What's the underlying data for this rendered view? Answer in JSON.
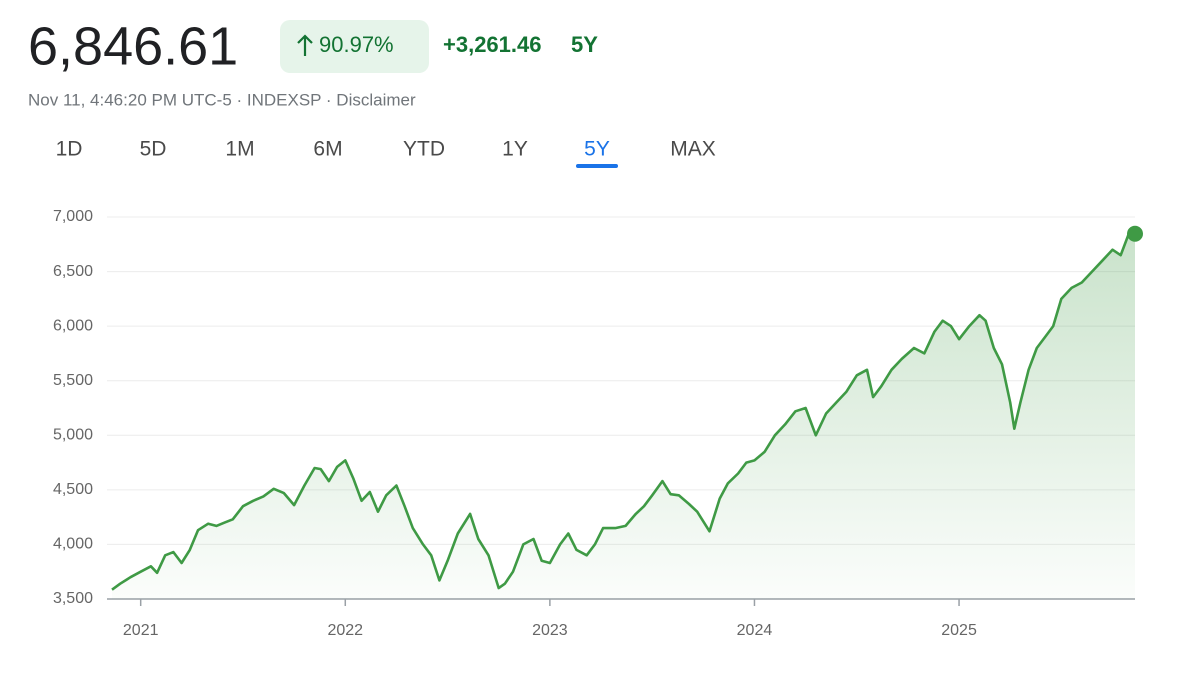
{
  "header": {
    "price": "6,846.61",
    "change_percent": "90.97%",
    "change_value": "+3,261.46",
    "period": "5Y",
    "meta": "Nov 11, 4:46:20 PM UTC-5 · INDEXSP · Disclaimer"
  },
  "tabs": {
    "items": [
      "1D",
      "5D",
      "1M",
      "6M",
      "YTD",
      "1Y",
      "5Y",
      "MAX"
    ],
    "active": 6
  },
  "chart_data": {
    "type": "line",
    "x": [
      2020.86,
      2020.9,
      2020.95,
      2021.0,
      2021.05,
      2021.08,
      2021.12,
      2021.16,
      2021.2,
      2021.24,
      2021.28,
      2021.33,
      2021.37,
      2021.41,
      2021.45,
      2021.5,
      2021.55,
      2021.6,
      2021.65,
      2021.7,
      2021.75,
      2021.8,
      2021.85,
      2021.88,
      2021.92,
      2021.96,
      2022.0,
      2022.04,
      2022.08,
      2022.12,
      2022.16,
      2022.2,
      2022.25,
      2022.29,
      2022.33,
      2022.38,
      2022.42,
      2022.46,
      2022.5,
      2022.55,
      2022.61,
      2022.65,
      2022.7,
      2022.75,
      2022.78,
      2022.82,
      2022.87,
      2022.92,
      2022.96,
      2023.0,
      2023.05,
      2023.09,
      2023.13,
      2023.18,
      2023.22,
      2023.26,
      2023.32,
      2023.37,
      2023.42,
      2023.46,
      2023.5,
      2023.55,
      2023.59,
      2023.63,
      2023.68,
      2023.72,
      2023.78,
      2023.83,
      2023.87,
      2023.92,
      2023.96,
      2024.0,
      2024.05,
      2024.1,
      2024.15,
      2024.2,
      2024.25,
      2024.3,
      2024.35,
      2024.4,
      2024.45,
      2024.5,
      2024.55,
      2024.58,
      2024.62,
      2024.67,
      2024.72,
      2024.78,
      2024.83,
      2024.88,
      2024.92,
      2024.96,
      2025.0,
      2025.05,
      2025.1,
      2025.13,
      2025.17,
      2025.21,
      2025.25,
      2025.27,
      2025.3,
      2025.34,
      2025.38,
      2025.42,
      2025.46,
      2025.5,
      2025.55,
      2025.6,
      2025.65,
      2025.7,
      2025.75,
      2025.79,
      2025.83,
      2025.86
    ],
    "series": [
      {
        "name": "INDEXSP",
        "color": "#3f9a45",
        "values": [
          3585,
          3640,
          3700,
          3750,
          3800,
          3740,
          3900,
          3930,
          3830,
          3950,
          4130,
          4190,
          4170,
          4200,
          4230,
          4350,
          4400,
          4440,
          4510,
          4470,
          4360,
          4540,
          4700,
          4690,
          4580,
          4710,
          4770,
          4600,
          4400,
          4480,
          4300,
          4450,
          4540,
          4350,
          4150,
          4000,
          3900,
          3670,
          3850,
          4100,
          4280,
          4050,
          3900,
          3600,
          3640,
          3750,
          4000,
          4050,
          3850,
          3830,
          4000,
          4100,
          3950,
          3900,
          4000,
          4150,
          4150,
          4170,
          4280,
          4350,
          4450,
          4580,
          4460,
          4450,
          4370,
          4300,
          4120,
          4420,
          4560,
          4650,
          4750,
          4770,
          4850,
          5000,
          5100,
          5220,
          5250,
          5000,
          5200,
          5300,
          5400,
          5550,
          5600,
          5350,
          5450,
          5600,
          5700,
          5800,
          5750,
          5950,
          6050,
          6000,
          5880,
          6000,
          6100,
          6050,
          5800,
          5650,
          5300,
          5060,
          5300,
          5600,
          5800,
          5900,
          6000,
          6250,
          6350,
          6400,
          6500,
          6600,
          6700,
          6650,
          6850,
          6846.61
        ]
      }
    ],
    "xlim": [
      2020.85,
      2025.86
    ],
    "xticks": [
      2021,
      2022,
      2023,
      2024,
      2025
    ],
    "ylim": [
      3500,
      7000
    ],
    "yticks": [
      {
        "value": 3500,
        "label": "3,500"
      },
      {
        "value": 4000,
        "label": "4,000"
      },
      {
        "value": 4500,
        "label": "4,500"
      },
      {
        "value": 5000,
        "label": "5,000"
      },
      {
        "value": 5500,
        "label": "5,500"
      },
      {
        "value": 6000,
        "label": "6,000"
      },
      {
        "value": 6500,
        "label": "6,500"
      },
      {
        "value": 7000,
        "label": "7,000"
      }
    ],
    "grid": true
  }
}
